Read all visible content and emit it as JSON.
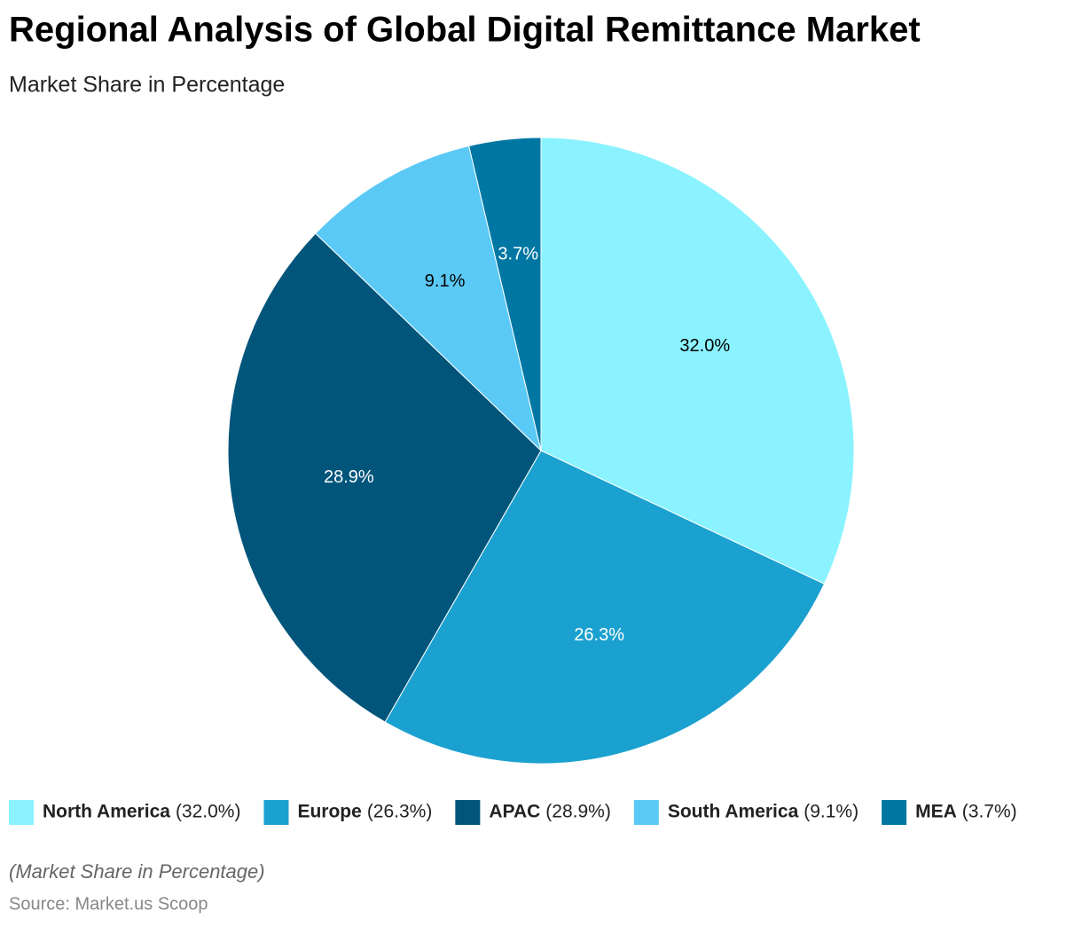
{
  "chart_data": {
    "type": "pie",
    "title": "Regional Analysis of Global Digital Remittance Market",
    "subtitle": "Market Share in Percentage",
    "categories": [
      "North America",
      "Europe",
      "APAC",
      "South America",
      "MEA"
    ],
    "values": [
      32.0,
      26.3,
      28.9,
      9.1,
      3.7
    ],
    "value_labels": [
      "32.0%",
      "26.3%",
      "28.9%",
      "9.1%",
      "3.7%"
    ],
    "legend_value_labels": [
      "(32.0%)",
      "(26.3%)",
      "(28.9%)",
      "(9.1%)",
      "(3.7%)"
    ],
    "colors": [
      "#8af3ff",
      "#1ba1cf",
      "#02557a",
      "#5bc9f5",
      "#0077a3"
    ],
    "legend": "bottom",
    "footnote": "(Market Share in Percentage)",
    "source": "Source: Market.us Scoop"
  }
}
